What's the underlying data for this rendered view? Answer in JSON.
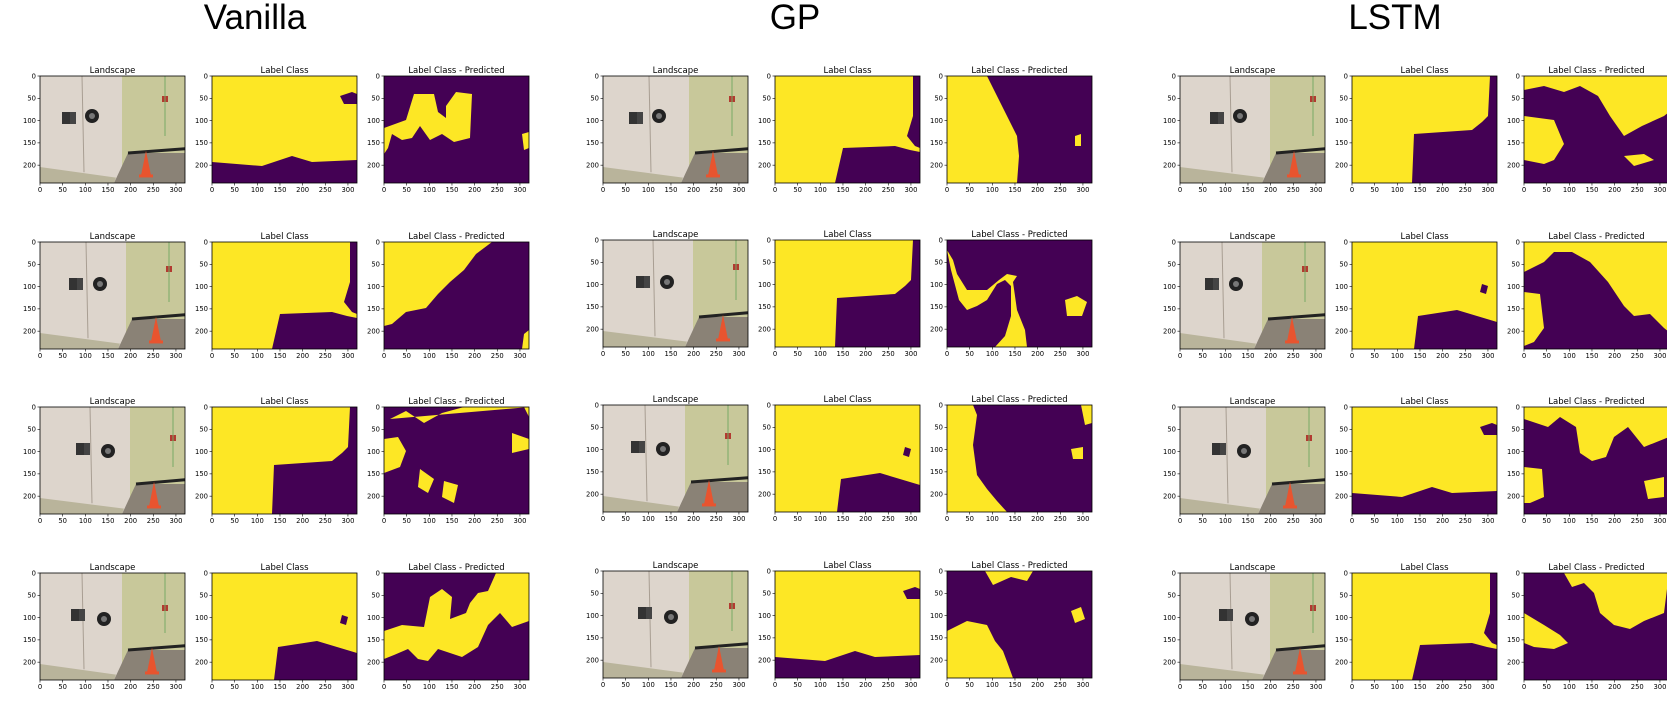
{
  "columns": [
    {
      "title": "Vanilla"
    },
    {
      "title": "GP"
    },
    {
      "title": "LSTM"
    }
  ],
  "panel_titles": [
    "Landscape",
    "Label Class",
    "Label Class - Predicted"
  ],
  "axes": {
    "x_ticks": [
      "0",
      "50",
      "100",
      "150",
      "200",
      "250",
      "300"
    ],
    "y_ticks": [
      "0",
      "50",
      "100",
      "150",
      "200"
    ]
  },
  "colors": {
    "yellow": "#fde725",
    "purple": "#440154",
    "wall": "#ddd5cc",
    "wall2": "#b9b49b",
    "green": "#c8c89a",
    "floor": "#8a8276",
    "cone": "#e8542f"
  }
}
